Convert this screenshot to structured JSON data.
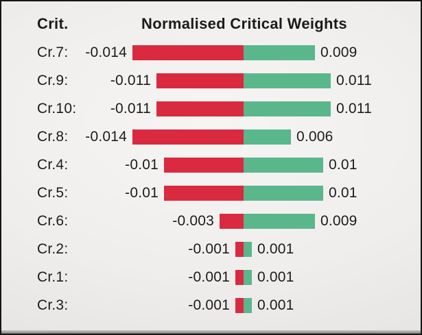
{
  "header": {
    "criteria_column": "Crit.",
    "title": "Normalised Critical Weights"
  },
  "chart_data": {
    "type": "bar",
    "subtype": "diverging-horizontal",
    "title": "Normalised Critical Weights",
    "negative_color": "#d92a40",
    "positive_color": "#5ab78c",
    "xlim": [
      -0.014,
      0.011
    ],
    "axis_zero": "center",
    "rows": [
      {
        "label": "Cr.7:",
        "negative": -0.014,
        "positive": 0.009,
        "neg_label": "-0.014",
        "pos_label": "0.009"
      },
      {
        "label": "Cr.9:",
        "negative": -0.011,
        "positive": 0.011,
        "neg_label": "-0.011",
        "pos_label": "0.011"
      },
      {
        "label": "Cr.10:",
        "negative": -0.011,
        "positive": 0.011,
        "neg_label": "-0.011",
        "pos_label": "0.011"
      },
      {
        "label": "Cr.8:",
        "negative": -0.014,
        "positive": 0.006,
        "neg_label": "-0.014",
        "pos_label": "0.006"
      },
      {
        "label": "Cr.4:",
        "negative": -0.01,
        "positive": 0.01,
        "neg_label": "-0.01",
        "pos_label": "0.01"
      },
      {
        "label": "Cr.5:",
        "negative": -0.01,
        "positive": 0.01,
        "neg_label": "-0.01",
        "pos_label": "0.01"
      },
      {
        "label": "Cr.6:",
        "negative": -0.003,
        "positive": 0.009,
        "neg_label": "-0.003",
        "pos_label": "0.009"
      },
      {
        "label": "Cr.2:",
        "negative": -0.001,
        "positive": 0.001,
        "neg_label": "-0.001",
        "pos_label": "0.001"
      },
      {
        "label": "Cr.1:",
        "negative": -0.001,
        "positive": 0.001,
        "neg_label": "-0.001",
        "pos_label": "0.001"
      },
      {
        "label": "Cr.3:",
        "negative": -0.001,
        "positive": 0.001,
        "neg_label": "-0.001",
        "pos_label": "0.001"
      }
    ]
  }
}
